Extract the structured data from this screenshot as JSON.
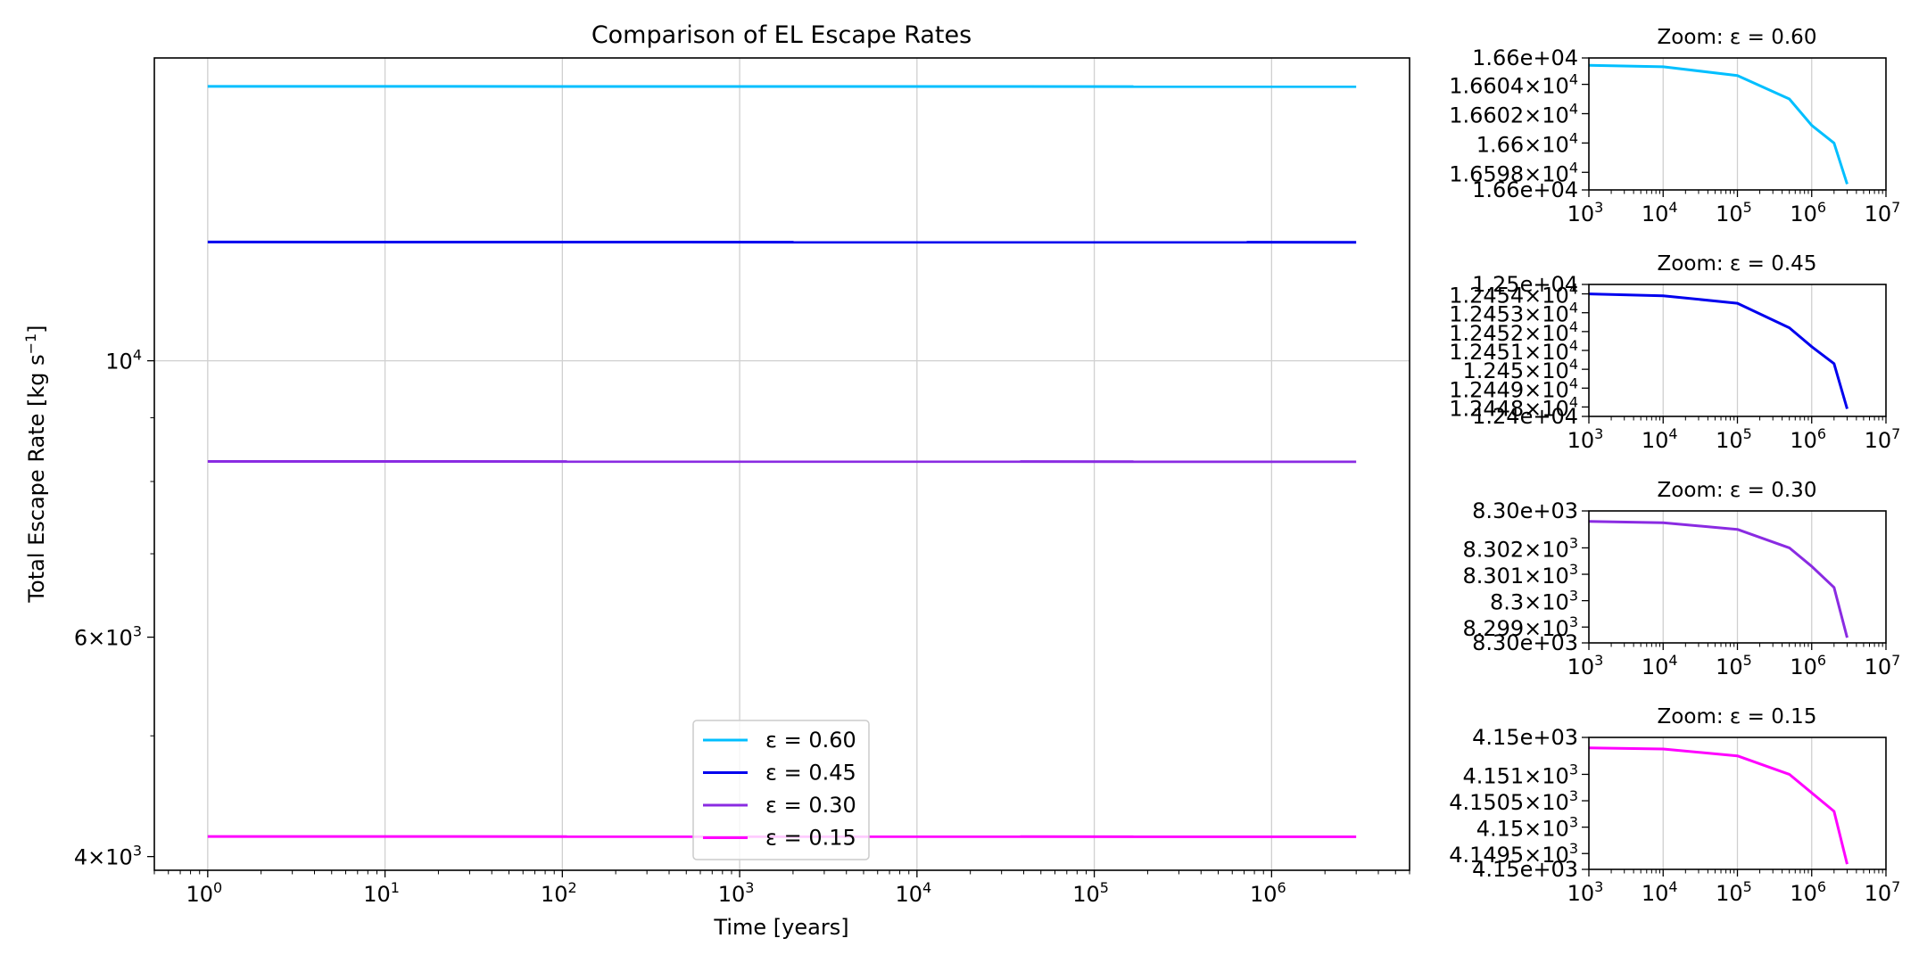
{
  "chart_data": [
    {
      "type": "line",
      "title": "Comparison of EL Escape Rates",
      "xlabel": "Time [years]",
      "ylabel_main": "Total Escape Rate [kg s",
      "ylabel_unit_exp": "−1",
      "ylabel_close": "]",
      "xscale": "log",
      "yscale": "log",
      "xlim": [
        0.5,
        6000000
      ],
      "ylim": [
        3900,
        17500
      ],
      "grid": true,
      "legend_position": "lower center",
      "x_ticks": [
        {
          "value": 1,
          "base": "10",
          "exp": "0"
        },
        {
          "value": 10,
          "base": "10",
          "exp": "1"
        },
        {
          "value": 100,
          "base": "10",
          "exp": "2"
        },
        {
          "value": 1000,
          "base": "10",
          "exp": "3"
        },
        {
          "value": 10000,
          "base": "10",
          "exp": "4"
        },
        {
          "value": 100000,
          "base": "10",
          "exp": "5"
        },
        {
          "value": 1000000,
          "base": "10",
          "exp": "6"
        }
      ],
      "y_ticks": [
        {
          "value": 10000,
          "pre": "",
          "base": "10",
          "exp": "4"
        },
        {
          "value": 6000,
          "pre": "6×",
          "base": "10",
          "exp": "3"
        },
        {
          "value": 4000,
          "pre": "4×",
          "base": "10",
          "exp": "3"
        }
      ],
      "y_minor_ticks": [
        5000,
        7000,
        8000,
        9000
      ],
      "x_range_data": [
        1,
        3000000
      ],
      "series": [
        {
          "name": "ε = 0.60",
          "color": "#00bfff",
          "values": [
            16604.5,
            16597.5
          ]
        },
        {
          "name": "ε = 0.45",
          "color": "#0000ee",
          "values": [
            12453.9,
            12448
          ]
        },
        {
          "name": "ε = 0.30",
          "color": "#8a2be2",
          "values": [
            8302.6,
            8298.8
          ]
        },
        {
          "name": "ε = 0.15",
          "color": "#ff00ff",
          "values": [
            4151.3,
            4149.4
          ]
        }
      ]
    },
    {
      "type": "line",
      "title": "Zoom: ε = 0.60",
      "color": "#00bfff",
      "xscale": "log",
      "xlim": [
        1000,
        10000000
      ],
      "ylim": [
        16596.8,
        16605.8
      ],
      "y_ticks": [
        {
          "value": 16605.8,
          "label": "1.66e+04"
        },
        {
          "value": 16604,
          "pre": "1.6604×",
          "base": "10",
          "exp": "4"
        },
        {
          "value": 16602,
          "pre": "1.6602×",
          "base": "10",
          "exp": "4"
        },
        {
          "value": 16600,
          "pre": "1.66×",
          "base": "10",
          "exp": "4"
        },
        {
          "value": 16598,
          "pre": "1.6598×",
          "base": "10",
          "exp": "4"
        },
        {
          "value": 16596.8,
          "label": "1.66e+04"
        }
      ],
      "x_ticks": [
        {
          "value": 1000,
          "base": "10",
          "exp": "3"
        },
        {
          "value": 10000,
          "base": "10",
          "exp": "4"
        },
        {
          "value": 100000,
          "base": "10",
          "exp": "5"
        },
        {
          "value": 1000000,
          "base": "10",
          "exp": "6"
        },
        {
          "value": 10000000,
          "base": "10",
          "exp": "7"
        }
      ],
      "x": [
        1000,
        10000,
        100000,
        500000,
        1000000,
        2000000,
        3000000
      ],
      "y": [
        16605.3,
        16605.2,
        16604.6,
        16603.0,
        16601.2,
        16600.0,
        16597.2
      ]
    },
    {
      "type": "line",
      "title": "Zoom: ε = 0.45",
      "color": "#0000ee",
      "xscale": "log",
      "xlim": [
        1000,
        10000000
      ],
      "ylim": [
        12447.5,
        12454.5
      ],
      "y_ticks": [
        {
          "value": 12454.5,
          "label": "1.25e+04"
        },
        {
          "value": 12454,
          "pre": "1.2454×",
          "base": "10",
          "exp": "4"
        },
        {
          "value": 12453,
          "pre": "1.2453×",
          "base": "10",
          "exp": "4"
        },
        {
          "value": 12452,
          "pre": "1.2452×",
          "base": "10",
          "exp": "4"
        },
        {
          "value": 12451,
          "pre": "1.2451×",
          "base": "10",
          "exp": "4"
        },
        {
          "value": 12450,
          "pre": "1.245×",
          "base": "10",
          "exp": "4"
        },
        {
          "value": 12449,
          "pre": "1.2449×",
          "base": "10",
          "exp": "4"
        },
        {
          "value": 12448,
          "pre": "1.2448×",
          "base": "10",
          "exp": "4"
        },
        {
          "value": 12447.5,
          "label": "1.24e+04"
        }
      ],
      "x_ticks": [
        {
          "value": 1000,
          "base": "10",
          "exp": "3"
        },
        {
          "value": 10000,
          "base": "10",
          "exp": "4"
        },
        {
          "value": 100000,
          "base": "10",
          "exp": "5"
        },
        {
          "value": 1000000,
          "base": "10",
          "exp": "6"
        },
        {
          "value": 10000000,
          "base": "10",
          "exp": "7"
        }
      ],
      "x": [
        1000,
        10000,
        100000,
        500000,
        1000000,
        2000000,
        3000000
      ],
      "y": [
        12454.0,
        12453.9,
        12453.5,
        12452.2,
        12451.2,
        12450.3,
        12447.9
      ]
    },
    {
      "type": "line",
      "title": "Zoom: ε = 0.30",
      "color": "#8a2be2",
      "xscale": "log",
      "xlim": [
        1000,
        10000000
      ],
      "ylim": [
        8298.4,
        8303.4
      ],
      "y_ticks": [
        {
          "value": 8303.4,
          "label": "8.30e+03"
        },
        {
          "value": 8302,
          "pre": "8.302×",
          "base": "10",
          "exp": "3"
        },
        {
          "value": 8301,
          "pre": "8.301×",
          "base": "10",
          "exp": "3"
        },
        {
          "value": 8300,
          "pre": "8.3×",
          "base": "10",
          "exp": "3"
        },
        {
          "value": 8299,
          "pre": "8.299×",
          "base": "10",
          "exp": "3"
        },
        {
          "value": 8298.4,
          "label": "8.30e+03"
        }
      ],
      "x_ticks": [
        {
          "value": 1000,
          "base": "10",
          "exp": "3"
        },
        {
          "value": 10000,
          "base": "10",
          "exp": "4"
        },
        {
          "value": 100000,
          "base": "10",
          "exp": "5"
        },
        {
          "value": 1000000,
          "base": "10",
          "exp": "6"
        },
        {
          "value": 10000000,
          "base": "10",
          "exp": "7"
        }
      ],
      "x": [
        1000,
        10000,
        100000,
        500000,
        1000000,
        2000000,
        3000000
      ],
      "y": [
        8303.0,
        8302.95,
        8302.7,
        8302.0,
        8301.3,
        8300.5,
        8298.6
      ]
    },
    {
      "type": "line",
      "title": "Zoom: ε = 0.15",
      "color": "#ff00ff",
      "xscale": "log",
      "xlim": [
        1000,
        10000000
      ],
      "ylim": [
        4149.2,
        4151.7
      ],
      "y_ticks": [
        {
          "value": 4151.7,
          "label": "4.15e+03"
        },
        {
          "value": 4151,
          "pre": "4.151×",
          "base": "10",
          "exp": "3"
        },
        {
          "value": 4150.5,
          "pre": "4.1505×",
          "base": "10",
          "exp": "3"
        },
        {
          "value": 4150,
          "pre": "4.15×",
          "base": "10",
          "exp": "3"
        },
        {
          "value": 4149.5,
          "pre": "4.1495×",
          "base": "10",
          "exp": "3"
        },
        {
          "value": 4149.2,
          "label": "4.15e+03"
        }
      ],
      "x_ticks": [
        {
          "value": 1000,
          "base": "10",
          "exp": "3"
        },
        {
          "value": 10000,
          "base": "10",
          "exp": "4"
        },
        {
          "value": 100000,
          "base": "10",
          "exp": "5"
        },
        {
          "value": 1000000,
          "base": "10",
          "exp": "6"
        },
        {
          "value": 10000000,
          "base": "10",
          "exp": "7"
        }
      ],
      "x": [
        1000,
        10000,
        100000,
        500000,
        1000000,
        2000000,
        3000000
      ],
      "y": [
        4151.5,
        4151.48,
        4151.35,
        4151.0,
        4150.65,
        4150.3,
        4149.3
      ]
    }
  ]
}
